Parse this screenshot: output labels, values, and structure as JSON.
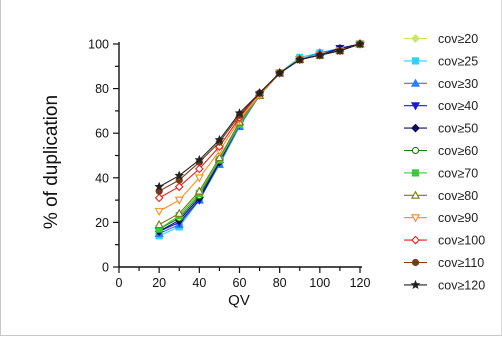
{
  "chart_data": {
    "type": "line",
    "title": "",
    "xlabel": "QV",
    "ylabel": "% of duplication",
    "xlim": [
      0,
      120
    ],
    "ylim": [
      0,
      100
    ],
    "xticks": [
      0,
      20,
      40,
      60,
      80,
      100,
      120
    ],
    "yticks": [
      0,
      20,
      40,
      60,
      80,
      100
    ],
    "grid": false,
    "legend": "right",
    "x": [
      20,
      30,
      40,
      50,
      60,
      70,
      80,
      90,
      100,
      110,
      120
    ],
    "series": [
      {
        "name": "cov≥20",
        "color": "#c8e66e",
        "marker": "diamond",
        "fill": true,
        "values": [
          15,
          19,
          31,
          47,
          64,
          77,
          87,
          94,
          96,
          98,
          100
        ]
      },
      {
        "name": "cov≥25",
        "color": "#2ed2ff",
        "marker": "square",
        "fill": true,
        "values": [
          14,
          18,
          30,
          46,
          63,
          77,
          87,
          94,
          96,
          98,
          100
        ]
      },
      {
        "name": "cov≥30",
        "color": "#2a7fff",
        "marker": "triangle-up",
        "fill": true,
        "values": [
          15,
          19,
          30,
          46,
          63,
          77,
          87,
          93,
          96,
          98,
          100
        ]
      },
      {
        "name": "cov≥40",
        "color": "#1b1bd6",
        "marker": "triangle-down",
        "fill": true,
        "values": [
          16,
          20,
          30,
          47,
          64,
          77,
          87,
          93,
          95,
          98,
          100
        ]
      },
      {
        "name": "cov≥50",
        "color": "#0c0c5e",
        "marker": "diamond",
        "fill": true,
        "values": [
          16,
          21,
          31,
          47,
          64,
          77,
          87,
          93,
          95,
          98,
          100
        ]
      },
      {
        "name": "cov≥60",
        "color": "#1a7a1a",
        "marker": "circle",
        "fill": false,
        "values": [
          17,
          22,
          32,
          48,
          64,
          77,
          87,
          93,
          95,
          97,
          100
        ]
      },
      {
        "name": "cov≥70",
        "color": "#3ec83e",
        "marker": "square",
        "fill": true,
        "values": [
          17,
          23,
          33,
          48,
          64,
          77,
          87,
          93,
          95,
          97,
          100
        ]
      },
      {
        "name": "cov≥80",
        "color": "#7a7a14",
        "marker": "triangle-up",
        "fill": false,
        "values": [
          19,
          24,
          34,
          49,
          65,
          77,
          87,
          93,
          95,
          97,
          100
        ]
      },
      {
        "name": "cov≥90",
        "color": "#ff8c1a",
        "marker": "triangle-down",
        "fill": false,
        "values": [
          25,
          30,
          40,
          52,
          66,
          77,
          87,
          93,
          95,
          97,
          100
        ]
      },
      {
        "name": "cov≥100",
        "color": "#ee1c1c",
        "marker": "diamond",
        "fill": false,
        "values": [
          31,
          36,
          44,
          54,
          67,
          78,
          87,
          93,
          95,
          97,
          100
        ]
      },
      {
        "name": "cov≥110",
        "color": "#7a3a14",
        "marker": "circle",
        "fill": true,
        "values": [
          34,
          39,
          47,
          56,
          68,
          78,
          87,
          93,
          95,
          97,
          100
        ]
      },
      {
        "name": "cov≥120",
        "color": "#222222",
        "marker": "star",
        "fill": true,
        "values": [
          36,
          41,
          48,
          57,
          69,
          78,
          87,
          93,
          95,
          97,
          100
        ]
      }
    ]
  }
}
